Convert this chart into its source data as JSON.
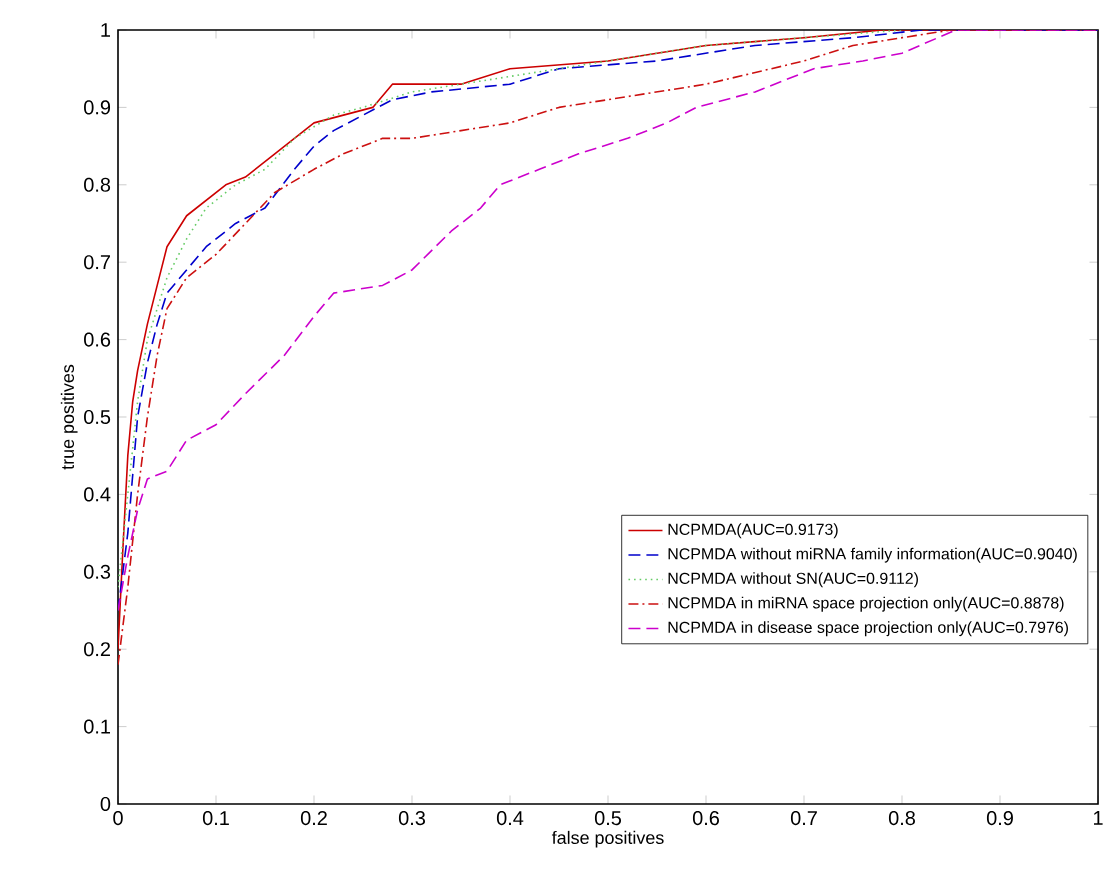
{
  "chart_data": {
    "type": "line",
    "xlabel": "false positives",
    "ylabel": "true positives",
    "xlim": [
      0,
      1
    ],
    "ylim": [
      0,
      1
    ],
    "xticks": [
      0,
      0.1,
      0.2,
      0.3,
      0.4,
      0.5,
      0.6,
      0.7,
      0.8,
      0.9,
      1
    ],
    "yticks": [
      0,
      0.1,
      0.2,
      0.3,
      0.4,
      0.5,
      0.6,
      0.7,
      0.8,
      0.9,
      1
    ],
    "legend": "right",
    "marker": "none",
    "series": [
      {
        "name": "NCPMDA(AUC=0.9173)",
        "color": "#cc0000",
        "line_style": "solid",
        "x": [
          0,
          0.005,
          0.01,
          0.015,
          0.02,
          0.03,
          0.04,
          0.05,
          0.06,
          0.07,
          0.09,
          0.11,
          0.13,
          0.16,
          0.18,
          0.2,
          0.23,
          0.26,
          0.28,
          0.35,
          0.4,
          0.5,
          0.6,
          0.7,
          0.78,
          1
        ],
        "values": [
          0.2,
          0.33,
          0.45,
          0.52,
          0.56,
          0.62,
          0.67,
          0.72,
          0.74,
          0.76,
          0.78,
          0.8,
          0.81,
          0.84,
          0.86,
          0.88,
          0.89,
          0.9,
          0.93,
          0.93,
          0.95,
          0.96,
          0.98,
          0.99,
          1.0,
          1.0
        ]
      },
      {
        "name": "NCPMDA without miRNA family information(AUC=0.9040)",
        "color": "#0000cc",
        "line_style": "dashed",
        "x": [
          0,
          0.01,
          0.02,
          0.03,
          0.04,
          0.05,
          0.07,
          0.09,
          0.12,
          0.15,
          0.18,
          0.2,
          0.22,
          0.25,
          0.28,
          0.32,
          0.4,
          0.45,
          0.55,
          0.65,
          0.75,
          0.82,
          1
        ],
        "values": [
          0.25,
          0.35,
          0.5,
          0.57,
          0.62,
          0.66,
          0.69,
          0.72,
          0.75,
          0.77,
          0.82,
          0.85,
          0.87,
          0.89,
          0.91,
          0.92,
          0.93,
          0.95,
          0.96,
          0.98,
          0.99,
          1.0,
          1.0
        ]
      },
      {
        "name": "NCPMDA without SN(AUC=0.9112)",
        "color": "#66cc66",
        "line_style": "dotted",
        "x": [
          0,
          0.01,
          0.02,
          0.03,
          0.05,
          0.07,
          0.09,
          0.12,
          0.15,
          0.18,
          0.22,
          0.25,
          0.3,
          0.4,
          0.5,
          0.6,
          0.7,
          0.8
        ],
        "values": [
          0.28,
          0.4,
          0.52,
          0.6,
          0.68,
          0.73,
          0.77,
          0.8,
          0.82,
          0.86,
          0.89,
          0.9,
          0.92,
          0.94,
          0.96,
          0.98,
          0.99,
          1.0
        ]
      },
      {
        "name": "NCPMDA in miRNA space projection only(AUC=0.8878)",
        "color": "#cc1010",
        "line_style": "dashdotted",
        "x": [
          0,
          0.01,
          0.02,
          0.03,
          0.04,
          0.05,
          0.07,
          0.1,
          0.13,
          0.16,
          0.2,
          0.23,
          0.27,
          0.3,
          0.35,
          0.4,
          0.45,
          0.5,
          0.6,
          0.7,
          0.75,
          0.8,
          0.85,
          1
        ],
        "values": [
          0.18,
          0.28,
          0.4,
          0.5,
          0.58,
          0.64,
          0.68,
          0.71,
          0.75,
          0.79,
          0.82,
          0.84,
          0.86,
          0.86,
          0.87,
          0.88,
          0.9,
          0.91,
          0.93,
          0.96,
          0.98,
          0.99,
          1.0,
          1.0
        ]
      },
      {
        "name": "NCPMDA in disease space projection only(AUC=0.7976)",
        "color": "#cc00cc",
        "line_style": "dashed",
        "x": [
          0,
          0.01,
          0.02,
          0.03,
          0.05,
          0.07,
          0.1,
          0.13,
          0.17,
          0.2,
          0.22,
          0.27,
          0.3,
          0.34,
          0.37,
          0.39,
          0.43,
          0.47,
          0.52,
          0.56,
          0.59,
          0.65,
          0.71,
          0.76,
          0.8,
          0.855,
          1
        ],
        "values": [
          0.25,
          0.32,
          0.38,
          0.42,
          0.43,
          0.47,
          0.49,
          0.53,
          0.58,
          0.63,
          0.66,
          0.67,
          0.69,
          0.74,
          0.77,
          0.8,
          0.82,
          0.84,
          0.86,
          0.88,
          0.9,
          0.92,
          0.95,
          0.96,
          0.97,
          1.0,
          1.0
        ]
      }
    ]
  }
}
